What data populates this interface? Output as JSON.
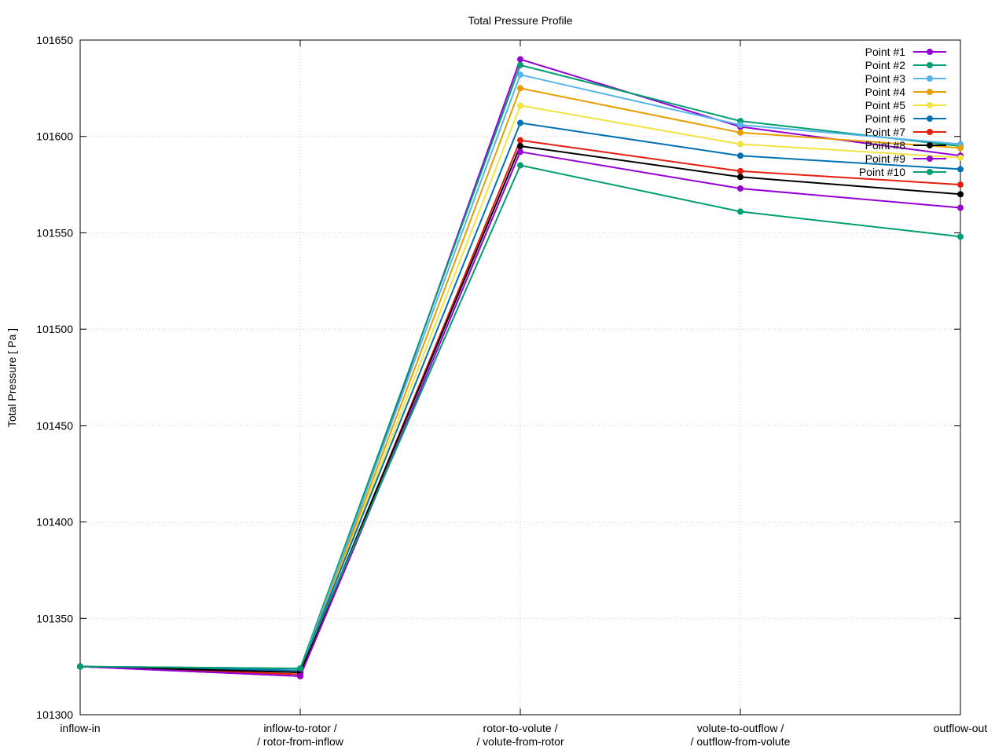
{
  "chart_data": {
    "type": "line",
    "title": "Total Pressure Profile",
    "xlabel": "",
    "ylabel": "Total Pressure [ Pa ]",
    "categories": [
      [
        "inflow-in"
      ],
      [
        "inflow-to-rotor /",
        "/ rotor-from-inflow"
      ],
      [
        "rotor-to-volute /",
        "/ volute-from-rotor"
      ],
      [
        "volute-to-outflow /",
        "/ outflow-from-volute"
      ],
      [
        "outflow-out"
      ]
    ],
    "ylim": [
      101300,
      101650
    ],
    "yticks": [
      "101300",
      "101350",
      "101400",
      "101450",
      "101500",
      "101550",
      "101600",
      "101650"
    ],
    "grid": true,
    "legend_position": "top-right",
    "series": [
      {
        "name": "Point #1",
        "color": "#9400d3",
        "values": [
          101325,
          101320,
          101640,
          101605,
          101590
        ]
      },
      {
        "name": "Point #2",
        "color": "#009e73",
        "values": [
          101325,
          101324,
          101637,
          101608,
          101595
        ]
      },
      {
        "name": "Point #3",
        "color": "#56b4e9",
        "values": [
          101325,
          101323,
          101632,
          101606,
          101596
        ]
      },
      {
        "name": "Point #4",
        "color": "#e69f00",
        "values": [
          101325,
          101322,
          101625,
          101602,
          101594
        ]
      },
      {
        "name": "Point #5",
        "color": "#f0e442",
        "values": [
          101325,
          101322,
          101616,
          101596,
          101589
        ]
      },
      {
        "name": "Point #6",
        "color": "#0072b2",
        "values": [
          101325,
          101323,
          101607,
          101590,
          101583
        ]
      },
      {
        "name": "Point #7",
        "color": "#e51e10",
        "values": [
          101325,
          101321,
          101598,
          101582,
          101575
        ]
      },
      {
        "name": "Point #8",
        "color": "#000000",
        "values": [
          101325,
          101322,
          101595,
          101579,
          101570
        ]
      },
      {
        "name": "Point #9",
        "color": "#9400d3",
        "values": [
          101325,
          101320,
          101592,
          101573,
          101563
        ]
      },
      {
        "name": "Point #10",
        "color": "#009e73",
        "values": [
          101325,
          101324,
          101585,
          101561,
          101548
        ]
      }
    ]
  }
}
